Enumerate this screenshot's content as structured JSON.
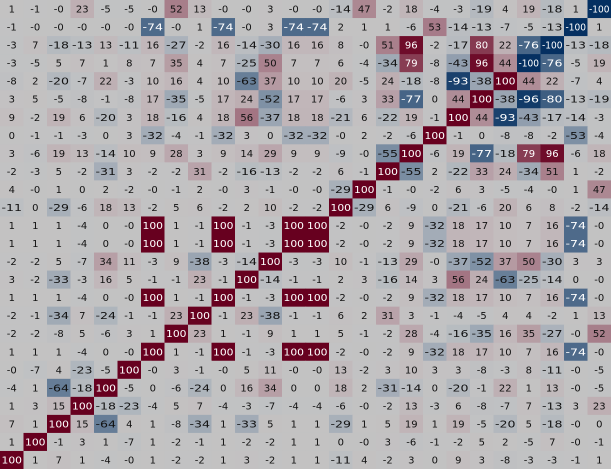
{
  "chart_data": {
    "type": "heatmap",
    "title": "",
    "xlabel": "",
    "ylabel": "",
    "colormap": "diverging blue-white-red (RdBu_r), overall dimmed",
    "vlim": [
      -100,
      100
    ],
    "colors": {
      "neg": "#053061",
      "zero": "#f7f7f7",
      "pos": "#67001f",
      "text_dark": "#111111",
      "text_light": "#ffffff"
    },
    "values": [
      [
        1,
        -1,
        0,
        23,
        -5,
        -5,
        0,
        52,
        13,
        0,
        0,
        3,
        0,
        0,
        -14,
        47,
        -2,
        18,
        -4,
        -3,
        -19,
        4,
        19,
        -18,
        1,
        -100
      ],
      [
        -1,
        0,
        0,
        0,
        0,
        0,
        -74,
        0,
        1,
        -74,
        0,
        3,
        -74,
        -74,
        2,
        1,
        1,
        -6,
        53,
        -14,
        -13,
        -7,
        -5,
        -13,
        -100,
        1
      ],
      [
        -3,
        7,
        -18,
        -13,
        13,
        -11,
        16,
        -27,
        -2,
        16,
        -14,
        -30,
        16,
        16,
        8,
        0,
        51,
        96,
        -2,
        -17,
        80,
        22,
        -76,
        -100,
        -13,
        -18
      ],
      [
        -3,
        -5,
        5,
        7,
        1,
        8,
        7,
        35,
        4,
        7,
        -25,
        50,
        7,
        7,
        6,
        -4,
        -34,
        79,
        -8,
        -43,
        96,
        44,
        -100,
        -76,
        -5,
        19
      ],
      [
        -8,
        2,
        -20,
        -7,
        22,
        -3,
        10,
        16,
        4,
        10,
        -63,
        37,
        10,
        10,
        20,
        -5,
        24,
        -18,
        -8,
        -93,
        -38,
        100,
        44,
        22,
        -7,
        4
      ],
      [
        3,
        5,
        -5,
        -8,
        -1,
        -8,
        17,
        -35,
        -5,
        17,
        24,
        -52,
        17,
        17,
        -6,
        3,
        33,
        -77,
        0,
        44,
        100,
        -38,
        -96,
        -80,
        -13,
        -19
      ],
      [
        9,
        -2,
        19,
        6,
        -20,
        3,
        18,
        -16,
        4,
        18,
        56,
        -37,
        18,
        18,
        -21,
        6,
        -22,
        19,
        -1,
        100,
        44,
        -93,
        -43,
        -17,
        -14,
        -3
      ],
      [
        0,
        -1,
        -1,
        -3,
        0,
        3,
        -32,
        -4,
        -1,
        -32,
        3,
        0,
        -32,
        -32,
        0,
        2,
        -2,
        -6,
        100,
        -1,
        0,
        -8,
        -8,
        -2,
        -53,
        -4
      ],
      [
        3,
        -6,
        19,
        13,
        -14,
        10,
        9,
        28,
        3,
        9,
        14,
        29,
        9,
        9,
        -9,
        0,
        -55,
        100,
        -6,
        19,
        -77,
        -18,
        79,
        96,
        -6,
        18
      ],
      [
        -2,
        -3,
        5,
        -2,
        -31,
        3,
        -2,
        -2,
        31,
        -2,
        -16,
        -13,
        -2,
        -2,
        6,
        -1,
        100,
        -55,
        2,
        -22,
        33,
        24,
        -34,
        51,
        1,
        -2
      ],
      [
        4,
        0,
        1,
        0,
        2,
        -2,
        0,
        -1,
        2,
        0,
        3,
        -1,
        0,
        0,
        -29,
        100,
        -1,
        0,
        -2,
        6,
        3,
        -5,
        -4,
        0,
        1,
        47
      ],
      [
        -11,
        0,
        -29,
        -6,
        18,
        13,
        -2,
        5,
        6,
        -2,
        2,
        10,
        -2,
        -2,
        100,
        -29,
        6,
        -9,
        0,
        -21,
        -6,
        20,
        6,
        8,
        -2,
        -14
      ],
      [
        1,
        1,
        1,
        -4,
        0,
        0,
        100,
        1,
        -1,
        100,
        -1,
        -3,
        100,
        100,
        -2,
        0,
        -2,
        9,
        -32,
        18,
        17,
        10,
        7,
        16,
        -74,
        0
      ],
      [
        1,
        1,
        1,
        -4,
        0,
        0,
        100,
        1,
        -1,
        100,
        -1,
        -3,
        100,
        100,
        -2,
        0,
        -2,
        9,
        -32,
        18,
        17,
        10,
        7,
        16,
        -74,
        0
      ],
      [
        -2,
        -2,
        5,
        -7,
        34,
        11,
        -3,
        9,
        -38,
        -3,
        -14,
        100,
        -3,
        -3,
        10,
        -1,
        -13,
        29,
        0,
        -37,
        -52,
        37,
        50,
        -30,
        3,
        3
      ],
      [
        3,
        -2,
        -33,
        -3,
        16,
        5,
        -1,
        -1,
        23,
        -1,
        100,
        -14,
        -1,
        -1,
        2,
        3,
        -16,
        14,
        3,
        56,
        24,
        -63,
        -25,
        -14,
        0,
        0
      ],
      [
        1,
        1,
        1,
        -4,
        0,
        0,
        100,
        1,
        -1,
        100,
        -1,
        -3,
        100,
        100,
        -2,
        0,
        -2,
        9,
        -32,
        18,
        17,
        10,
        7,
        16,
        -74,
        0
      ],
      [
        -2,
        -1,
        -34,
        7,
        -24,
        -1,
        -1,
        23,
        100,
        -1,
        23,
        -38,
        -1,
        -1,
        6,
        2,
        31,
        3,
        -1,
        -4,
        -5,
        4,
        4,
        -2,
        1,
        13
      ],
      [
        -2,
        -2,
        -8,
        5,
        -6,
        3,
        1,
        100,
        23,
        1,
        -1,
        9,
        1,
        1,
        5,
        -1,
        -2,
        28,
        -4,
        -16,
        -35,
        16,
        35,
        -27,
        0,
        52
      ],
      [
        1,
        1,
        1,
        -4,
        0,
        0,
        100,
        1,
        -1,
        100,
        -1,
        -3,
        100,
        100,
        -2,
        0,
        -2,
        9,
        -32,
        18,
        17,
        10,
        7,
        16,
        -74,
        0
      ],
      [
        0,
        -7,
        4,
        -23,
        -5,
        100,
        0,
        3,
        -1,
        0,
        5,
        11,
        0,
        0,
        13,
        -2,
        3,
        10,
        3,
        3,
        -8,
        -3,
        8,
        -11,
        0,
        -5
      ],
      [
        -4,
        1,
        -64,
        -18,
        100,
        -5,
        0,
        -6,
        -24,
        0,
        16,
        34,
        0,
        0,
        18,
        2,
        -31,
        -14,
        0,
        -20,
        -1,
        22,
        1,
        13,
        0,
        -5
      ],
      [
        1,
        3,
        15,
        100,
        -18,
        -23,
        -4,
        5,
        7,
        -4,
        -3,
        -7,
        -4,
        -4,
        -6,
        0,
        -2,
        13,
        -3,
        6,
        -8,
        -7,
        7,
        -13,
        3,
        23
      ],
      [
        7,
        1,
        100,
        15,
        -64,
        4,
        1,
        -8,
        -34,
        1,
        -33,
        5,
        1,
        1,
        -29,
        1,
        5,
        19,
        1,
        19,
        -5,
        -20,
        5,
        -18,
        0,
        0
      ],
      [
        1,
        100,
        -1,
        3,
        1,
        -7,
        1,
        -2,
        -1,
        1,
        -2,
        -2,
        1,
        1,
        0,
        0,
        3,
        -6,
        -1,
        -2,
        5,
        2,
        -5,
        7,
        0,
        -1
      ],
      [
        100,
        1,
        7,
        1,
        -4,
        0,
        1,
        -2,
        -2,
        1,
        3,
        -2,
        1,
        1,
        -11,
        4,
        -2,
        3,
        0,
        9,
        3,
        -8,
        -3,
        -3,
        -1,
        1
      ]
    ]
  }
}
